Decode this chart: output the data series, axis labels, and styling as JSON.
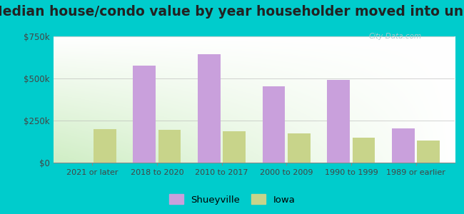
{
  "title": "Median house/condo value by year householder moved into unit",
  "categories": [
    "2021 or later",
    "2018 to 2020",
    "2010 to 2017",
    "2000 to 2009",
    "1990 to 1999",
    "1989 or earlier"
  ],
  "shueyville": [
    0,
    575000,
    645000,
    455000,
    490000,
    205000
  ],
  "iowa": [
    200000,
    195000,
    185000,
    175000,
    150000,
    130000
  ],
  "shueyville_color": "#c9a0dc",
  "iowa_color": "#c8d48a",
  "outer_bg": "#00cccc",
  "bg_bottom_left": "#c0e8b8",
  "bg_top_right": "#ffffff",
  "ylim": [
    0,
    750000
  ],
  "yticks": [
    0,
    250000,
    500000,
    750000
  ],
  "ytick_labels": [
    "$0",
    "$250k",
    "$500k",
    "$750k"
  ],
  "legend_shueyville": "Shueyville",
  "legend_iowa": "Iowa",
  "bar_width": 0.35,
  "bar_gap": 0.04,
  "title_fontsize": 13.5,
  "watermark": "City-Data.com"
}
